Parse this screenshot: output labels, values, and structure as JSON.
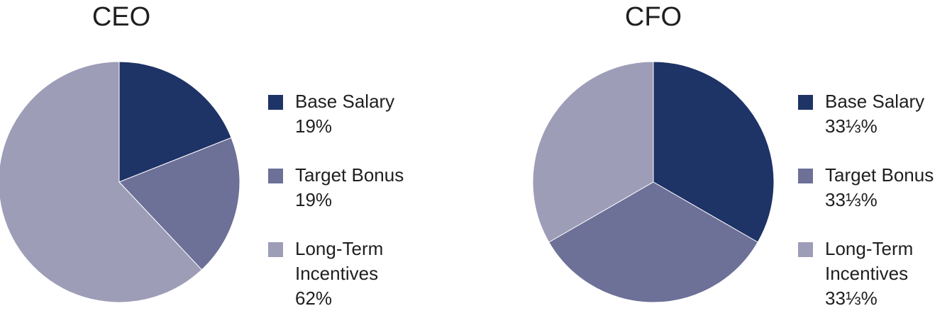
{
  "chart_data": [
    {
      "type": "pie",
      "title": "CEO",
      "slices": [
        {
          "label": "Base Salary",
          "value": 19,
          "value_label": "19%",
          "color": "#1e3366"
        },
        {
          "label": "Target Bonus",
          "value": 19,
          "value_label": "19%",
          "color": "#6d7097"
        },
        {
          "label": "Long-Term\nIncentives",
          "value": 62,
          "value_label": "62%",
          "color": "#9d9db8"
        }
      ],
      "legend_position": "right"
    },
    {
      "type": "pie",
      "title": "CFO",
      "slices": [
        {
          "label": "Base Salary",
          "value": 33.3333,
          "value_label": "33⅓%",
          "color": "#1e3366"
        },
        {
          "label": "Target Bonus",
          "value": 33.3333,
          "value_label": "33⅓%",
          "color": "#6d7097"
        },
        {
          "label": "Long-Term\nIncentives",
          "value": 33.3333,
          "value_label": "33⅓%",
          "color": "#9d9db8"
        }
      ],
      "legend_position": "right"
    }
  ]
}
